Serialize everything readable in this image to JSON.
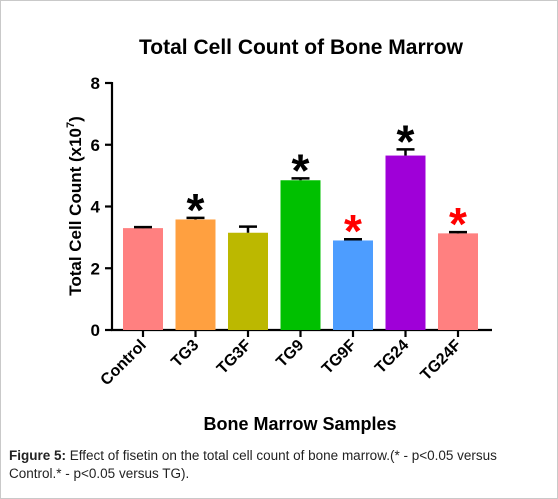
{
  "chart_data": {
    "type": "bar",
    "title": "Total Cell Count of Bone Marrow",
    "xlabel": "Bone Marrow Samples",
    "ylabel_main": "Total Cell  Count (x10",
    "ylabel_sup": "7",
    "ylabel_end": ")",
    "ylim": [
      0,
      8
    ],
    "yticks": [
      "0",
      "2",
      "4",
      "6",
      "8"
    ],
    "categories": [
      "Control",
      "TG3",
      "TG3F",
      "TG9",
      "TG9F",
      "TG24",
      "TG24F"
    ],
    "values": [
      3.3,
      3.58,
      3.15,
      4.85,
      2.9,
      5.65,
      3.13
    ],
    "errors": [
      0.03,
      0.05,
      0.2,
      0.06,
      0.04,
      0.2,
      0.04
    ],
    "colors": [
      "#ff8080",
      "#ffa040",
      "#bcb800",
      "#00c000",
      "#4d9dff",
      "#9f00d8",
      "#ff8080"
    ],
    "annotations": [
      {
        "category": "TG3",
        "text": "*",
        "color": "#000000"
      },
      {
        "category": "TG9",
        "text": "*",
        "color": "#000000"
      },
      {
        "category": "TG9F",
        "text": "*",
        "color": "#ff0000"
      },
      {
        "category": "TG24",
        "text": "*",
        "color": "#000000"
      },
      {
        "category": "TG24F",
        "text": "*",
        "color": "#ff0000"
      }
    ],
    "grid": false,
    "legend": "none"
  },
  "caption": {
    "label": "Figure 5:",
    "text": " Effect of fisetin on the total cell count of bone marrow.(* - p<0.05 versus Control.* - p<0.05 versus TG)."
  }
}
